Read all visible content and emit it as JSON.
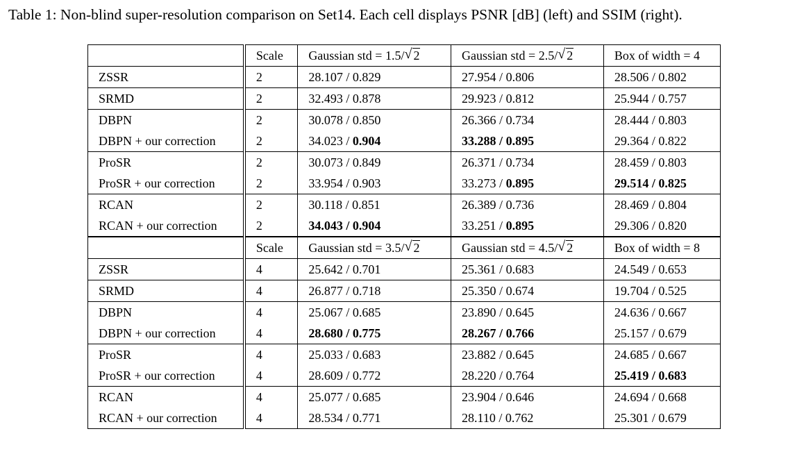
{
  "caption": "Table 1: Non-blind super-resolution comparison on Set14. Each cell displays PSNR [dB] (left) and SSIM (right).",
  "blocks": [
    {
      "header": {
        "method": "",
        "scale": "Scale",
        "col1": {
          "prefix": "Gaussian std = 1.5/",
          "radicand": "2"
        },
        "col2": {
          "prefix": "Gaussian std = 2.5/",
          "radicand": "2"
        },
        "col3": {
          "prefix": "Box of width = 4",
          "radicand": ""
        }
      },
      "groups": [
        [
          {
            "method": "ZSSR",
            "scale": "2",
            "cells": [
              {
                "psnr": "28.107",
                "ssim": "0.829",
                "bold_psnr": false,
                "bold_ssim": false
              },
              {
                "psnr": "27.954",
                "ssim": "0.806",
                "bold_psnr": false,
                "bold_ssim": false
              },
              {
                "psnr": "28.506",
                "ssim": "0.802",
                "bold_psnr": false,
                "bold_ssim": false
              }
            ]
          }
        ],
        [
          {
            "method": "SRMD",
            "scale": "2",
            "cells": [
              {
                "psnr": "32.493",
                "ssim": "0.878",
                "bold_psnr": false,
                "bold_ssim": false
              },
              {
                "psnr": "29.923",
                "ssim": "0.812",
                "bold_psnr": false,
                "bold_ssim": false
              },
              {
                "psnr": "25.944",
                "ssim": "0.757",
                "bold_psnr": false,
                "bold_ssim": false
              }
            ]
          }
        ],
        [
          {
            "method": "DBPN",
            "scale": "2",
            "cells": [
              {
                "psnr": "30.078",
                "ssim": "0.850",
                "bold_psnr": false,
                "bold_ssim": false
              },
              {
                "psnr": "26.366",
                "ssim": "0.734",
                "bold_psnr": false,
                "bold_ssim": false
              },
              {
                "psnr": "28.444",
                "ssim": "0.803",
                "bold_psnr": false,
                "bold_ssim": false
              }
            ]
          },
          {
            "method": "DBPN + our correction",
            "scale": "2",
            "cells": [
              {
                "psnr": "34.023",
                "ssim": "0.904",
                "bold_psnr": false,
                "bold_ssim": true
              },
              {
                "psnr": "33.288",
                "ssim": "0.895",
                "bold_psnr": true,
                "bold_ssim": true
              },
              {
                "psnr": "29.364",
                "ssim": "0.822",
                "bold_psnr": false,
                "bold_ssim": false
              }
            ]
          }
        ],
        [
          {
            "method": "ProSR",
            "scale": "2",
            "cells": [
              {
                "psnr": "30.073",
                "ssim": "0.849",
                "bold_psnr": false,
                "bold_ssim": false
              },
              {
                "psnr": "26.371",
                "ssim": "0.734",
                "bold_psnr": false,
                "bold_ssim": false
              },
              {
                "psnr": "28.459",
                "ssim": "0.803",
                "bold_psnr": false,
                "bold_ssim": false
              }
            ]
          },
          {
            "method": "ProSR + our correction",
            "scale": "2",
            "cells": [
              {
                "psnr": "33.954",
                "ssim": "0.903",
                "bold_psnr": false,
                "bold_ssim": false
              },
              {
                "psnr": "33.273",
                "ssim": "0.895",
                "bold_psnr": false,
                "bold_ssim": true
              },
              {
                "psnr": "29.514",
                "ssim": "0.825",
                "bold_psnr": true,
                "bold_ssim": true
              }
            ]
          }
        ],
        [
          {
            "method": "RCAN",
            "scale": "2",
            "cells": [
              {
                "psnr": "30.118",
                "ssim": "0.851",
                "bold_psnr": false,
                "bold_ssim": false
              },
              {
                "psnr": "26.389",
                "ssim": "0.736",
                "bold_psnr": false,
                "bold_ssim": false
              },
              {
                "psnr": "28.469",
                "ssim": "0.804",
                "bold_psnr": false,
                "bold_ssim": false
              }
            ]
          },
          {
            "method": "RCAN + our correction",
            "scale": "2",
            "cells": [
              {
                "psnr": "34.043",
                "ssim": "0.904",
                "bold_psnr": true,
                "bold_ssim": true
              },
              {
                "psnr": "33.251",
                "ssim": "0.895",
                "bold_psnr": false,
                "bold_ssim": true
              },
              {
                "psnr": "29.306",
                "ssim": "0.820",
                "bold_psnr": false,
                "bold_ssim": false
              }
            ]
          }
        ]
      ]
    },
    {
      "header": {
        "method": "",
        "scale": "Scale",
        "col1": {
          "prefix": "Gaussian std = 3.5/",
          "radicand": "2"
        },
        "col2": {
          "prefix": "Gaussian std = 4.5/",
          "radicand": "2"
        },
        "col3": {
          "prefix": "Box of width = 8",
          "radicand": ""
        }
      },
      "groups": [
        [
          {
            "method": "ZSSR",
            "scale": "4",
            "cells": [
              {
                "psnr": "25.642",
                "ssim": "0.701",
                "bold_psnr": false,
                "bold_ssim": false
              },
              {
                "psnr": "25.361",
                "ssim": "0.683",
                "bold_psnr": false,
                "bold_ssim": false
              },
              {
                "psnr": "24.549",
                "ssim": "0.653",
                "bold_psnr": false,
                "bold_ssim": false
              }
            ]
          }
        ],
        [
          {
            "method": "SRMD",
            "scale": "4",
            "cells": [
              {
                "psnr": "26.877",
                "ssim": "0.718",
                "bold_psnr": false,
                "bold_ssim": false
              },
              {
                "psnr": "25.350",
                "ssim": "0.674",
                "bold_psnr": false,
                "bold_ssim": false
              },
              {
                "psnr": "19.704",
                "ssim": "0.525",
                "bold_psnr": false,
                "bold_ssim": false
              }
            ]
          }
        ],
        [
          {
            "method": "DBPN",
            "scale": "4",
            "cells": [
              {
                "psnr": "25.067",
                "ssim": "0.685",
                "bold_psnr": false,
                "bold_ssim": false
              },
              {
                "psnr": "23.890",
                "ssim": "0.645",
                "bold_psnr": false,
                "bold_ssim": false
              },
              {
                "psnr": "24.636",
                "ssim": "0.667",
                "bold_psnr": false,
                "bold_ssim": false
              }
            ]
          },
          {
            "method": "DBPN + our correction",
            "scale": "4",
            "cells": [
              {
                "psnr": "28.680",
                "ssim": "0.775",
                "bold_psnr": true,
                "bold_ssim": true
              },
              {
                "psnr": "28.267",
                "ssim": "0.766",
                "bold_psnr": true,
                "bold_ssim": true
              },
              {
                "psnr": "25.157",
                "ssim": "0.679",
                "bold_psnr": false,
                "bold_ssim": false
              }
            ]
          }
        ],
        [
          {
            "method": "ProSR",
            "scale": "4",
            "cells": [
              {
                "psnr": "25.033",
                "ssim": "0.683",
                "bold_psnr": false,
                "bold_ssim": false
              },
              {
                "psnr": "23.882",
                "ssim": "0.645",
                "bold_psnr": false,
                "bold_ssim": false
              },
              {
                "psnr": "24.685",
                "ssim": "0.667",
                "bold_psnr": false,
                "bold_ssim": false
              }
            ]
          },
          {
            "method": "ProSR + our correction",
            "scale": "4",
            "cells": [
              {
                "psnr": "28.609",
                "ssim": "0.772",
                "bold_psnr": false,
                "bold_ssim": false
              },
              {
                "psnr": "28.220",
                "ssim": "0.764",
                "bold_psnr": false,
                "bold_ssim": false
              },
              {
                "psnr": "25.419",
                "ssim": "0.683",
                "bold_psnr": true,
                "bold_ssim": true
              }
            ]
          }
        ],
        [
          {
            "method": "RCAN",
            "scale": "4",
            "cells": [
              {
                "psnr": "25.077",
                "ssim": "0.685",
                "bold_psnr": false,
                "bold_ssim": false
              },
              {
                "psnr": "23.904",
                "ssim": "0.646",
                "bold_psnr": false,
                "bold_ssim": false
              },
              {
                "psnr": "24.694",
                "ssim": "0.668",
                "bold_psnr": false,
                "bold_ssim": false
              }
            ]
          },
          {
            "method": "RCAN + our correction",
            "scale": "4",
            "cells": [
              {
                "psnr": "28.534",
                "ssim": "0.771",
                "bold_psnr": false,
                "bold_ssim": false
              },
              {
                "psnr": "28.110",
                "ssim": "0.762",
                "bold_psnr": false,
                "bold_ssim": false
              },
              {
                "psnr": "25.301",
                "ssim": "0.679",
                "bold_psnr": false,
                "bold_ssim": false
              }
            ]
          }
        ]
      ]
    }
  ]
}
